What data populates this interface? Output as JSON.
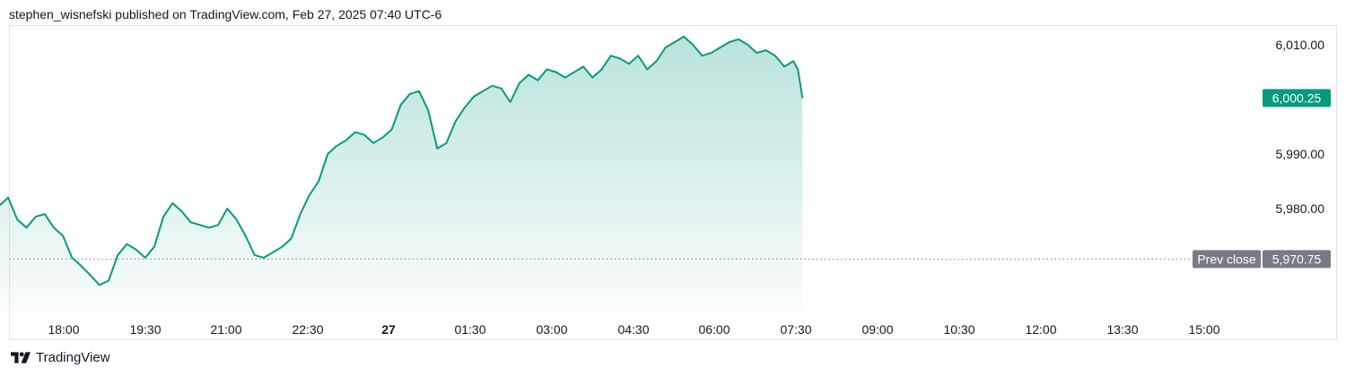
{
  "header": {
    "published": "stephen_wisnefski published on TradingView.com, Feb 27, 2025 07:40 UTC-6"
  },
  "footer": {
    "brand": "TradingView",
    "logo_icon": "tradingview-logo-icon"
  },
  "colors": {
    "line": "#089981",
    "fill": "#089981",
    "price_badge": "#089981",
    "prev_close_badge": "#787b86",
    "dotted_line": "#787b86"
  },
  "chart_data": {
    "type": "area",
    "title": "",
    "xlabel": "",
    "ylabel": "",
    "ylim": [
      5967.5,
      6012.0
    ],
    "grid": false,
    "x_ticks": [
      "18:00",
      "19:30",
      "21:00",
      "22:30",
      "27",
      "01:30",
      "03:00",
      "04:30",
      "06:00",
      "07:30",
      "09:00",
      "10:30",
      "12:00",
      "13:30",
      "15:00"
    ],
    "y_ticks": [
      "6,010.00",
      "5,990.00",
      "5,980.00"
    ],
    "last_price": {
      "label": "6,000.25",
      "value": 6000.25
    },
    "prev_close": {
      "label": "Prev close",
      "value_label": "5,970.75",
      "value": 5970.75
    },
    "series": [
      {
        "x": [
          "17:00",
          "17:10",
          "17:20",
          "17:30",
          "17:40",
          "17:50",
          "18:00",
          "18:10",
          "18:20",
          "18:30",
          "18:40",
          "18:50",
          "19:00",
          "19:10",
          "19:20",
          "19:30",
          "19:40",
          "19:50",
          "20:00",
          "20:10",
          "20:20",
          "20:30",
          "20:40",
          "20:50",
          "21:00",
          "21:10",
          "21:20",
          "21:30",
          "21:40",
          "21:50",
          "22:00",
          "22:10",
          "22:20",
          "22:30",
          "22:40",
          "22:50",
          "23:00",
          "23:10",
          "23:20",
          "23:30",
          "23:40",
          "23:50",
          "00:00",
          "00:10",
          "00:20",
          "00:30",
          "00:40",
          "00:50",
          "01:00",
          "01:10",
          "01:20",
          "01:30",
          "01:40",
          "01:50",
          "02:00",
          "02:10",
          "02:20",
          "02:30",
          "02:40",
          "02:50",
          "03:00",
          "03:10",
          "03:20",
          "03:30",
          "03:40",
          "03:50",
          "04:00",
          "04:10",
          "04:20",
          "04:30",
          "04:40",
          "04:50",
          "05:00",
          "05:10",
          "05:20",
          "05:30",
          "05:40",
          "05:50",
          "06:00",
          "06:10",
          "06:20",
          "06:30",
          "06:40",
          "06:50",
          "07:00",
          "07:10",
          "07:20",
          "07:30",
          "07:35",
          "07:40"
        ],
        "values": [
          5980.5,
          5982.0,
          5978.0,
          5976.5,
          5978.5,
          5979.0,
          5976.5,
          5975.0,
          5971.0,
          5969.5,
          5967.8,
          5966.0,
          5966.8,
          5971.5,
          5973.5,
          5972.5,
          5971.0,
          5973.0,
          5978.5,
          5981.0,
          5979.5,
          5977.5,
          5977.0,
          5976.5,
          5977.0,
          5980.0,
          5978.0,
          5975.0,
          5971.5,
          5971.0,
          5972.0,
          5973.0,
          5974.5,
          5979.0,
          5982.5,
          5985.0,
          5990.0,
          5991.5,
          5992.5,
          5994.0,
          5993.5,
          5992.0,
          5993.0,
          5994.5,
          5999.0,
          6001.0,
          6001.5,
          5998.0,
          5991.0,
          5992.0,
          5996.0,
          5998.5,
          6000.5,
          6001.5,
          6002.5,
          6002.0,
          5999.5,
          6003.0,
          6004.5,
          6003.5,
          6005.5,
          6005.0,
          6004.0,
          6005.0,
          6006.0,
          6004.0,
          6005.5,
          6008.0,
          6007.5,
          6006.5,
          6008.0,
          6005.5,
          6007.0,
          6009.5,
          6010.5,
          6011.5,
          6010.0,
          6008.0,
          6008.5,
          6009.5,
          6010.5,
          6011.0,
          6010.0,
          6008.5,
          6009.0,
          6008.0,
          6006.0,
          6007.0,
          6005.5,
          6000.25
        ]
      }
    ]
  }
}
